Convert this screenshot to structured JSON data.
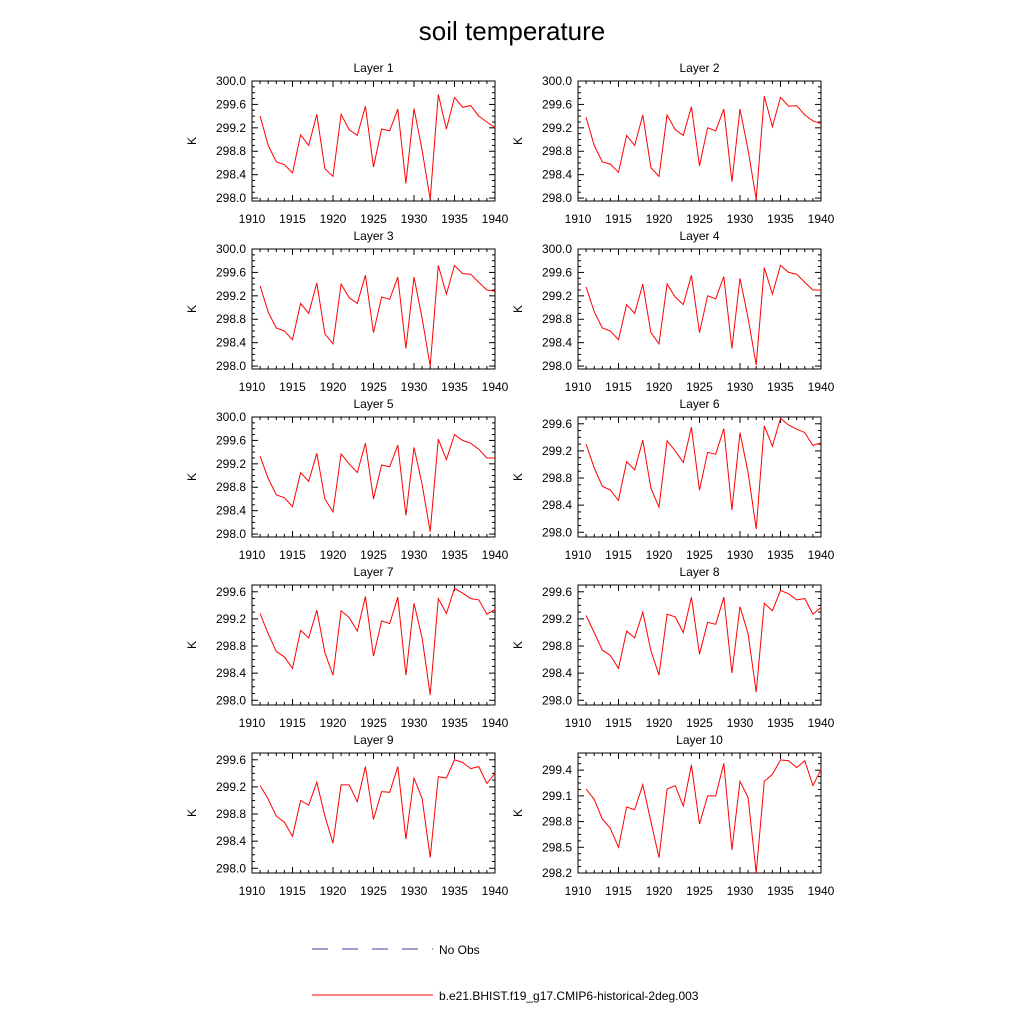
{
  "figure": {
    "title": "soil temperature",
    "colors": {
      "model": "#ff0000",
      "obs": "#3c3ca0",
      "axis": "#000000"
    },
    "legend": {
      "entries": [
        {
          "label": "No Obs",
          "style": "dashed",
          "color": "#3c3ca0"
        },
        {
          "label": "b.e21.BHIST.f19_g17.CMIP6-historical-2deg.003",
          "style": "solid",
          "color": "#ff0000"
        }
      ]
    }
  },
  "chart_data": [
    {
      "type": "line",
      "title": "Layer 1",
      "ylabel": "K",
      "xlim": [
        1910,
        1940
      ],
      "ylim": [
        297.95,
        300.0
      ],
      "xticks": [
        1910,
        1915,
        1920,
        1925,
        1930,
        1935,
        1940
      ],
      "yticks": [
        298.0,
        298.4,
        298.8,
        299.2,
        299.6,
        300.0
      ],
      "ytick_labels": [
        "298.0",
        "298.4",
        "298.8",
        "299.2",
        "299.6",
        "300.0"
      ],
      "x": [
        1911,
        1912,
        1913,
        1914,
        1915,
        1916,
        1917,
        1918,
        1919,
        1920,
        1921,
        1922,
        1923,
        1924,
        1925,
        1926,
        1927,
        1928,
        1929,
        1930,
        1931,
        1932,
        1933,
        1934,
        1935,
        1936,
        1937,
        1938,
        1939,
        1940
      ],
      "series": [
        {
          "name": "b.e21.BHIST.f19_g17.CMIP6-historical-2deg.003",
          "values": [
            299.4,
            298.9,
            298.62,
            298.57,
            298.43,
            299.08,
            298.9,
            299.43,
            298.5,
            298.37,
            299.43,
            299.17,
            299.07,
            299.57,
            298.53,
            299.18,
            299.15,
            299.52,
            298.25,
            299.53,
            298.82,
            297.98,
            299.77,
            299.18,
            299.72,
            299.55,
            299.58,
            299.4,
            299.3,
            299.2
          ]
        }
      ]
    },
    {
      "type": "line",
      "title": "Layer 2",
      "ylabel": "K",
      "xlim": [
        1910,
        1940
      ],
      "ylim": [
        297.95,
        300.0
      ],
      "xticks": [
        1910,
        1915,
        1920,
        1925,
        1930,
        1935,
        1940
      ],
      "yticks": [
        298.0,
        298.4,
        298.8,
        299.2,
        299.6,
        300.0
      ],
      "ytick_labels": [
        "298.0",
        "298.4",
        "298.8",
        "299.2",
        "299.6",
        "300.0"
      ],
      "x": [
        1911,
        1912,
        1913,
        1914,
        1915,
        1916,
        1917,
        1918,
        1919,
        1920,
        1921,
        1922,
        1923,
        1924,
        1925,
        1926,
        1927,
        1928,
        1929,
        1930,
        1931,
        1932,
        1933,
        1934,
        1935,
        1936,
        1937,
        1938,
        1939,
        1940
      ],
      "series": [
        {
          "name": "b.e21.BHIST.f19_g17.CMIP6-historical-2deg.003",
          "values": [
            299.38,
            298.9,
            298.62,
            298.58,
            298.44,
            299.07,
            298.9,
            299.42,
            298.52,
            298.37,
            299.42,
            299.17,
            299.07,
            299.56,
            298.55,
            299.2,
            299.15,
            299.52,
            298.28,
            299.52,
            298.82,
            297.98,
            299.74,
            299.22,
            299.72,
            299.57,
            299.58,
            299.42,
            299.32,
            299.27
          ]
        }
      ]
    },
    {
      "type": "line",
      "title": "Layer 3",
      "ylabel": "K",
      "xlim": [
        1910,
        1940
      ],
      "ylim": [
        297.95,
        300.0
      ],
      "xticks": [
        1910,
        1915,
        1920,
        1925,
        1930,
        1935,
        1940
      ],
      "yticks": [
        298.0,
        298.4,
        298.8,
        299.2,
        299.6,
        300.0
      ],
      "ytick_labels": [
        "298.0",
        "298.4",
        "298.8",
        "299.2",
        "299.6",
        "300.0"
      ],
      "x": [
        1911,
        1912,
        1913,
        1914,
        1915,
        1916,
        1917,
        1918,
        1919,
        1920,
        1921,
        1922,
        1923,
        1924,
        1925,
        1926,
        1927,
        1928,
        1929,
        1930,
        1931,
        1932,
        1933,
        1934,
        1935,
        1936,
        1937,
        1938,
        1939,
        1940
      ],
      "series": [
        {
          "name": "b.e21.BHIST.f19_g17.CMIP6-historical-2deg.003",
          "values": [
            299.37,
            298.92,
            298.65,
            298.6,
            298.45,
            299.07,
            298.9,
            299.42,
            298.55,
            298.38,
            299.4,
            299.17,
            299.07,
            299.55,
            298.57,
            299.18,
            299.14,
            299.52,
            298.3,
            299.52,
            298.82,
            298.0,
            299.72,
            299.23,
            299.72,
            299.58,
            299.57,
            299.43,
            299.3,
            299.28
          ]
        }
      ]
    },
    {
      "type": "line",
      "title": "Layer 4",
      "ylabel": "K",
      "xlim": [
        1910,
        1940
      ],
      "ylim": [
        297.95,
        300.0
      ],
      "xticks": [
        1910,
        1915,
        1920,
        1925,
        1930,
        1935,
        1940
      ],
      "yticks": [
        298.0,
        298.4,
        298.8,
        299.2,
        299.6,
        300.0
      ],
      "ytick_labels": [
        "298.0",
        "298.4",
        "298.8",
        "299.2",
        "299.6",
        "300.0"
      ],
      "x": [
        1911,
        1912,
        1913,
        1914,
        1915,
        1916,
        1917,
        1918,
        1919,
        1920,
        1921,
        1922,
        1923,
        1924,
        1925,
        1926,
        1927,
        1928,
        1929,
        1930,
        1931,
        1932,
        1933,
        1934,
        1935,
        1936,
        1937,
        1938,
        1939,
        1940
      ],
      "series": [
        {
          "name": "b.e21.BHIST.f19_g17.CMIP6-historical-2deg.003",
          "values": [
            299.35,
            298.93,
            298.65,
            298.6,
            298.45,
            299.05,
            298.9,
            299.4,
            298.57,
            298.38,
            299.4,
            299.18,
            299.05,
            299.55,
            298.57,
            299.2,
            299.15,
            299.53,
            298.3,
            299.5,
            298.82,
            298.02,
            299.68,
            299.23,
            299.72,
            299.6,
            299.57,
            299.43,
            299.3,
            299.3
          ]
        }
      ]
    },
    {
      "type": "line",
      "title": "Layer 5",
      "ylabel": "K",
      "xlim": [
        1910,
        1940
      ],
      "ylim": [
        297.95,
        300.0
      ],
      "xticks": [
        1910,
        1915,
        1920,
        1925,
        1930,
        1935,
        1940
      ],
      "yticks": [
        298.0,
        298.4,
        298.8,
        299.2,
        299.6,
        300.0
      ],
      "ytick_labels": [
        "298.0",
        "298.4",
        "298.8",
        "299.2",
        "299.6",
        "300.0"
      ],
      "x": [
        1911,
        1912,
        1913,
        1914,
        1915,
        1916,
        1917,
        1918,
        1919,
        1920,
        1921,
        1922,
        1923,
        1924,
        1925,
        1926,
        1927,
        1928,
        1929,
        1930,
        1931,
        1932,
        1933,
        1934,
        1935,
        1936,
        1937,
        1938,
        1939,
        1940
      ],
      "series": [
        {
          "name": "b.e21.BHIST.f19_g17.CMIP6-historical-2deg.003",
          "values": [
            299.33,
            298.95,
            298.67,
            298.62,
            298.47,
            299.05,
            298.9,
            299.38,
            298.6,
            298.38,
            299.37,
            299.2,
            299.05,
            299.55,
            298.6,
            299.18,
            299.15,
            299.52,
            298.32,
            299.48,
            298.85,
            298.04,
            299.62,
            299.27,
            299.7,
            299.6,
            299.55,
            299.45,
            299.3,
            299.3
          ]
        }
      ]
    },
    {
      "type": "line",
      "title": "Layer 6",
      "ylabel": "K",
      "xlim": [
        1910,
        1940
      ],
      "ylim": [
        297.93,
        299.7
      ],
      "xticks": [
        1910,
        1915,
        1920,
        1925,
        1930,
        1935,
        1940
      ],
      "yticks": [
        298.0,
        298.4,
        298.8,
        299.2,
        299.6
      ],
      "ytick_labels": [
        "298.0",
        "298.4",
        "298.8",
        "299.2",
        "299.6"
      ],
      "x": [
        1911,
        1912,
        1913,
        1914,
        1915,
        1916,
        1917,
        1918,
        1919,
        1920,
        1921,
        1922,
        1923,
        1924,
        1925,
        1926,
        1927,
        1928,
        1929,
        1930,
        1931,
        1932,
        1933,
        1934,
        1935,
        1936,
        1937,
        1938,
        1939,
        1940
      ],
      "series": [
        {
          "name": "b.e21.BHIST.f19_g17.CMIP6-historical-2deg.003",
          "values": [
            299.3,
            298.95,
            298.68,
            298.62,
            298.47,
            299.04,
            298.92,
            299.36,
            298.65,
            298.37,
            299.35,
            299.2,
            299.03,
            299.55,
            298.62,
            299.18,
            299.15,
            299.53,
            298.33,
            299.47,
            298.88,
            298.05,
            299.57,
            299.27,
            299.68,
            299.58,
            299.52,
            299.47,
            299.28,
            299.32
          ]
        }
      ]
    },
    {
      "type": "line",
      "title": "Layer 7",
      "ylabel": "K",
      "xlim": [
        1910,
        1940
      ],
      "ylim": [
        297.93,
        299.7
      ],
      "xticks": [
        1910,
        1915,
        1920,
        1925,
        1930,
        1935,
        1940
      ],
      "yticks": [
        298.0,
        298.4,
        298.8,
        299.2,
        299.6
      ],
      "ytick_labels": [
        "298.0",
        "298.4",
        "298.8",
        "299.2",
        "299.6"
      ],
      "x": [
        1911,
        1912,
        1913,
        1914,
        1915,
        1916,
        1917,
        1918,
        1919,
        1920,
        1921,
        1922,
        1923,
        1924,
        1925,
        1926,
        1927,
        1928,
        1929,
        1930,
        1931,
        1932,
        1933,
        1934,
        1935,
        1936,
        1937,
        1938,
        1939,
        1940
      ],
      "series": [
        {
          "name": "b.e21.BHIST.f19_g17.CMIP6-historical-2deg.003",
          "values": [
            299.28,
            298.98,
            298.72,
            298.64,
            298.47,
            299.03,
            298.92,
            299.33,
            298.7,
            298.37,
            299.32,
            299.22,
            299.02,
            299.53,
            298.65,
            299.17,
            299.13,
            299.52,
            298.37,
            299.43,
            298.92,
            298.08,
            299.5,
            299.28,
            299.65,
            299.58,
            299.5,
            299.48,
            299.27,
            299.34
          ]
        }
      ]
    },
    {
      "type": "line",
      "title": "Layer 8",
      "ylabel": "K",
      "xlim": [
        1910,
        1940
      ],
      "ylim": [
        297.93,
        299.7
      ],
      "xticks": [
        1910,
        1915,
        1920,
        1925,
        1930,
        1935,
        1940
      ],
      "yticks": [
        298.0,
        298.4,
        298.8,
        299.2,
        299.6
      ],
      "ytick_labels": [
        "298.0",
        "298.4",
        "298.8",
        "299.2",
        "299.6"
      ],
      "x": [
        1911,
        1912,
        1913,
        1914,
        1915,
        1916,
        1917,
        1918,
        1919,
        1920,
        1921,
        1922,
        1923,
        1924,
        1925,
        1926,
        1927,
        1928,
        1929,
        1930,
        1931,
        1932,
        1933,
        1934,
        1935,
        1936,
        1937,
        1938,
        1939,
        1940
      ],
      "series": [
        {
          "name": "b.e21.BHIST.f19_g17.CMIP6-historical-2deg.003",
          "values": [
            299.25,
            299.0,
            298.74,
            298.66,
            298.47,
            299.02,
            298.92,
            299.3,
            298.73,
            298.37,
            299.27,
            299.23,
            299.0,
            299.52,
            298.68,
            299.15,
            299.12,
            299.52,
            298.4,
            299.38,
            298.98,
            298.12,
            299.43,
            299.32,
            299.62,
            299.57,
            299.48,
            299.5,
            299.27,
            299.37
          ]
        }
      ]
    },
    {
      "type": "line",
      "title": "Layer 9",
      "ylabel": "K",
      "xlim": [
        1910,
        1940
      ],
      "ylim": [
        297.93,
        299.7
      ],
      "xticks": [
        1910,
        1915,
        1920,
        1925,
        1930,
        1935,
        1940
      ],
      "yticks": [
        298.0,
        298.4,
        298.8,
        299.2,
        299.6
      ],
      "ytick_labels": [
        "298.0",
        "298.4",
        "298.8",
        "299.2",
        "299.6"
      ],
      "x": [
        1911,
        1912,
        1913,
        1914,
        1915,
        1916,
        1917,
        1918,
        1919,
        1920,
        1921,
        1922,
        1923,
        1924,
        1925,
        1926,
        1927,
        1928,
        1929,
        1930,
        1931,
        1932,
        1933,
        1934,
        1935,
        1936,
        1937,
        1938,
        1939,
        1940
      ],
      "series": [
        {
          "name": "b.e21.BHIST.f19_g17.CMIP6-historical-2deg.003",
          "values": [
            299.22,
            299.02,
            298.77,
            298.68,
            298.47,
            299.0,
            298.93,
            299.27,
            298.77,
            298.37,
            299.23,
            299.23,
            298.98,
            299.5,
            298.72,
            299.13,
            299.12,
            299.5,
            298.43,
            299.33,
            299.03,
            298.16,
            299.35,
            299.33,
            299.6,
            299.56,
            299.47,
            299.5,
            299.25,
            299.4
          ]
        }
      ]
    },
    {
      "type": "line",
      "title": "Layer 10",
      "ylabel": "K",
      "xlim": [
        1910,
        1940
      ],
      "ylim": [
        298.2,
        299.6
      ],
      "xticks": [
        1910,
        1915,
        1920,
        1925,
        1930,
        1935,
        1940
      ],
      "yticks": [
        298.2,
        298.5,
        298.8,
        299.1,
        299.4
      ],
      "ytick_labels": [
        "298.2",
        "298.5",
        "298.8",
        "299.1",
        "299.4"
      ],
      "x": [
        1911,
        1912,
        1913,
        1914,
        1915,
        1916,
        1917,
        1918,
        1919,
        1920,
        1921,
        1922,
        1923,
        1924,
        1925,
        1926,
        1927,
        1928,
        1929,
        1930,
        1931,
        1932,
        1933,
        1934,
        1935,
        1936,
        1937,
        1938,
        1939,
        1940
      ],
      "series": [
        {
          "name": "b.e21.BHIST.f19_g17.CMIP6-historical-2deg.003",
          "values": [
            299.18,
            299.06,
            298.83,
            298.72,
            298.5,
            298.97,
            298.94,
            299.23,
            298.8,
            298.38,
            299.18,
            299.22,
            298.98,
            299.46,
            298.77,
            299.1,
            299.1,
            299.48,
            298.47,
            299.27,
            299.08,
            298.2,
            299.27,
            299.35,
            299.52,
            299.51,
            299.43,
            299.51,
            299.22,
            299.41
          ]
        }
      ]
    }
  ]
}
